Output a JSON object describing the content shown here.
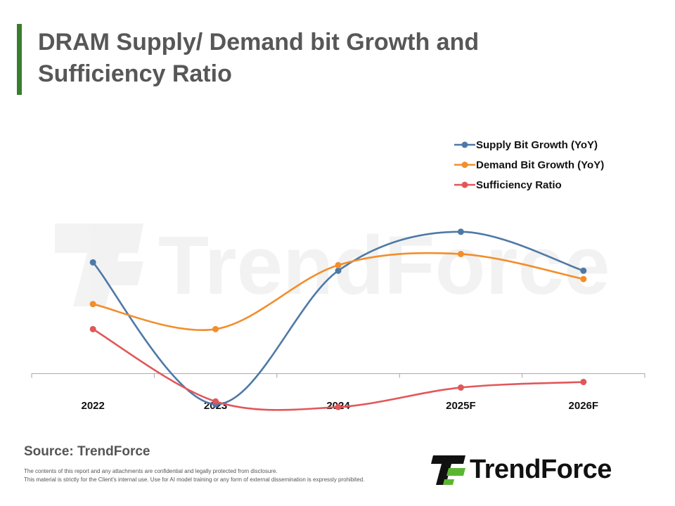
{
  "title": "DRAM Supply/ Demand bit Growth and Sufficiency Ratio",
  "footer": {
    "source": "Source: TrendForce",
    "disclaimer_line1": "The contents of this report and any attachments are confidential and legally protected from disclosure.",
    "disclaimer_line2": "This material is strictly for the Client's internal use. Use for AI model training or any form of external dissemination is expressly prohibited.",
    "brand": "TrendForce",
    "watermark": "TrendForce"
  },
  "colors": {
    "supply": "#4e79a7",
    "demand": "#f28e2b",
    "sufficiency": "#e15759",
    "title_bar": "#3a7d2c",
    "logo_green": "#5bb531"
  },
  "chart_data": {
    "type": "line",
    "categories": [
      "2022",
      "2023",
      "2024",
      "2025F",
      "2026F"
    ],
    "series": [
      {
        "name": "Supply Bit Growth (YoY)",
        "values": [
          20,
          -5.5,
          18.5,
          25.5,
          18.5
        ]
      },
      {
        "name": "Demand Bit Growth (YoY)",
        "values": [
          12.5,
          8,
          19.5,
          21.5,
          17
        ]
      },
      {
        "name": "Sufficiency Ratio",
        "values": [
          8,
          -5,
          -6,
          -2.5,
          -1.5
        ]
      }
    ],
    "ylim": [
      -20,
      40
    ],
    "zero_axis": true,
    "grid": false,
    "smooth": true,
    "legend": "top-right",
    "xlabel": "",
    "ylabel": ""
  }
}
